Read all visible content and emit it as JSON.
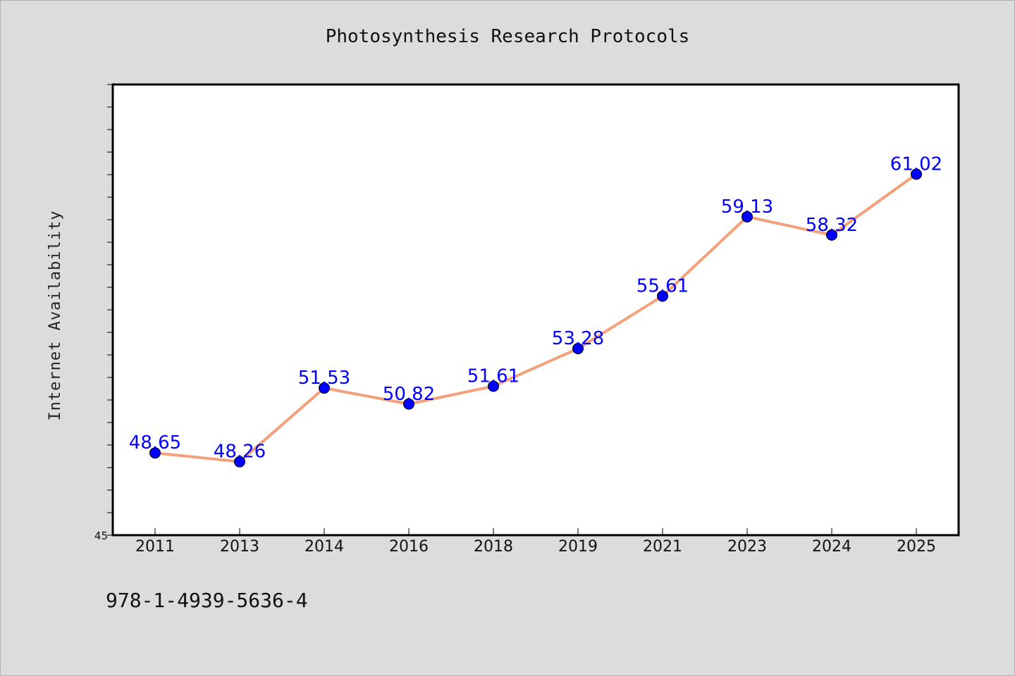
{
  "footer": {
    "isbn": "978-1-4939-5636-4"
  },
  "chart_data": {
    "type": "line",
    "title": "Photosynthesis Research Protocols",
    "xlabel": "",
    "ylabel": "Internet Availability",
    "categories": [
      "2011",
      "2013",
      "2014",
      "2016",
      "2018",
      "2019",
      "2021",
      "2023",
      "2024",
      "2025"
    ],
    "series": [
      {
        "values": [
          48.65,
          48.26,
          51.53,
          50.82,
          51.61,
          53.28,
          55.61,
          59.13,
          58.32,
          61.02
        ],
        "line_color": "#f4a07a",
        "marker_color": "#0000ff"
      }
    ],
    "data_labels": [
      "48.65",
      "48.26",
      "51.53",
      "50.82",
      "51.61",
      "53.28",
      "55.61",
      "59.13",
      "58.32",
      "61.02"
    ],
    "ylim": [
      45,
      65
    ],
    "yticks_labeled": [
      "45"
    ],
    "grid": false,
    "legend": "none"
  }
}
